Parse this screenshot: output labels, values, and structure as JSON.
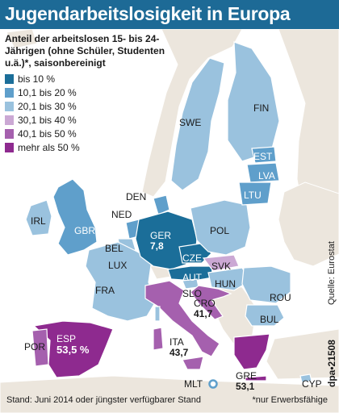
{
  "title": "Jugendarbeitslosigkeit in Europa",
  "legend": {
    "title": "Anteil der arbeitslosen 15- bis 24-Jährigen (ohne Schüler, Studenten u.ä.)*, saisonbereinigt",
    "items": [
      {
        "label": "bis 10 %",
        "color": "#1b6e99"
      },
      {
        "label": "10,1 bis 20 %",
        "color": "#5f9fcb"
      },
      {
        "label": "20,1 bis 30 %",
        "color": "#9ac2de"
      },
      {
        "label": "30,1 bis 40 %",
        "color": "#cba8d4"
      },
      {
        "label": "40,1 bis 50 %",
        "color": "#a560ae"
      },
      {
        "label": "mehr als 50 %",
        "color": "#8e2a8f"
      }
    ]
  },
  "countries": [
    {
      "code": "IRL"
    },
    {
      "code": "GBR"
    },
    {
      "code": "DEN"
    },
    {
      "code": "NED"
    },
    {
      "code": "BEL"
    },
    {
      "code": "LUX"
    },
    {
      "code": "FRA"
    },
    {
      "code": "GER",
      "value": "7,8"
    },
    {
      "code": "CZE"
    },
    {
      "code": "AUT"
    },
    {
      "code": "POL"
    },
    {
      "code": "SVK"
    },
    {
      "code": "HUN"
    },
    {
      "code": "SLO"
    },
    {
      "code": "CRO",
      "value": "41,7"
    },
    {
      "code": "ROU"
    },
    {
      "code": "BUL"
    },
    {
      "code": "ITA",
      "value": "43,7"
    },
    {
      "code": "MLT"
    },
    {
      "code": "POR"
    },
    {
      "code": "ESP",
      "value": "53,5 %"
    },
    {
      "code": "GRE",
      "value": "53,1"
    },
    {
      "code": "CYP"
    },
    {
      "code": "SWE"
    },
    {
      "code": "FIN"
    },
    {
      "code": "EST"
    },
    {
      "code": "LVA"
    },
    {
      "code": "LTU"
    }
  ],
  "footer": "Stand: Juni 2014 oder jüngster verfügbarer Stand",
  "footnote": "*nur Erwerbsfähige",
  "source": "Quelle: Eurostat",
  "credit": "dpa•21508",
  "colors": {
    "title_bar": "#1d6a96",
    "sea": "#ffffff",
    "non_eu": "#ece6dd",
    "border": "#ffffff"
  }
}
